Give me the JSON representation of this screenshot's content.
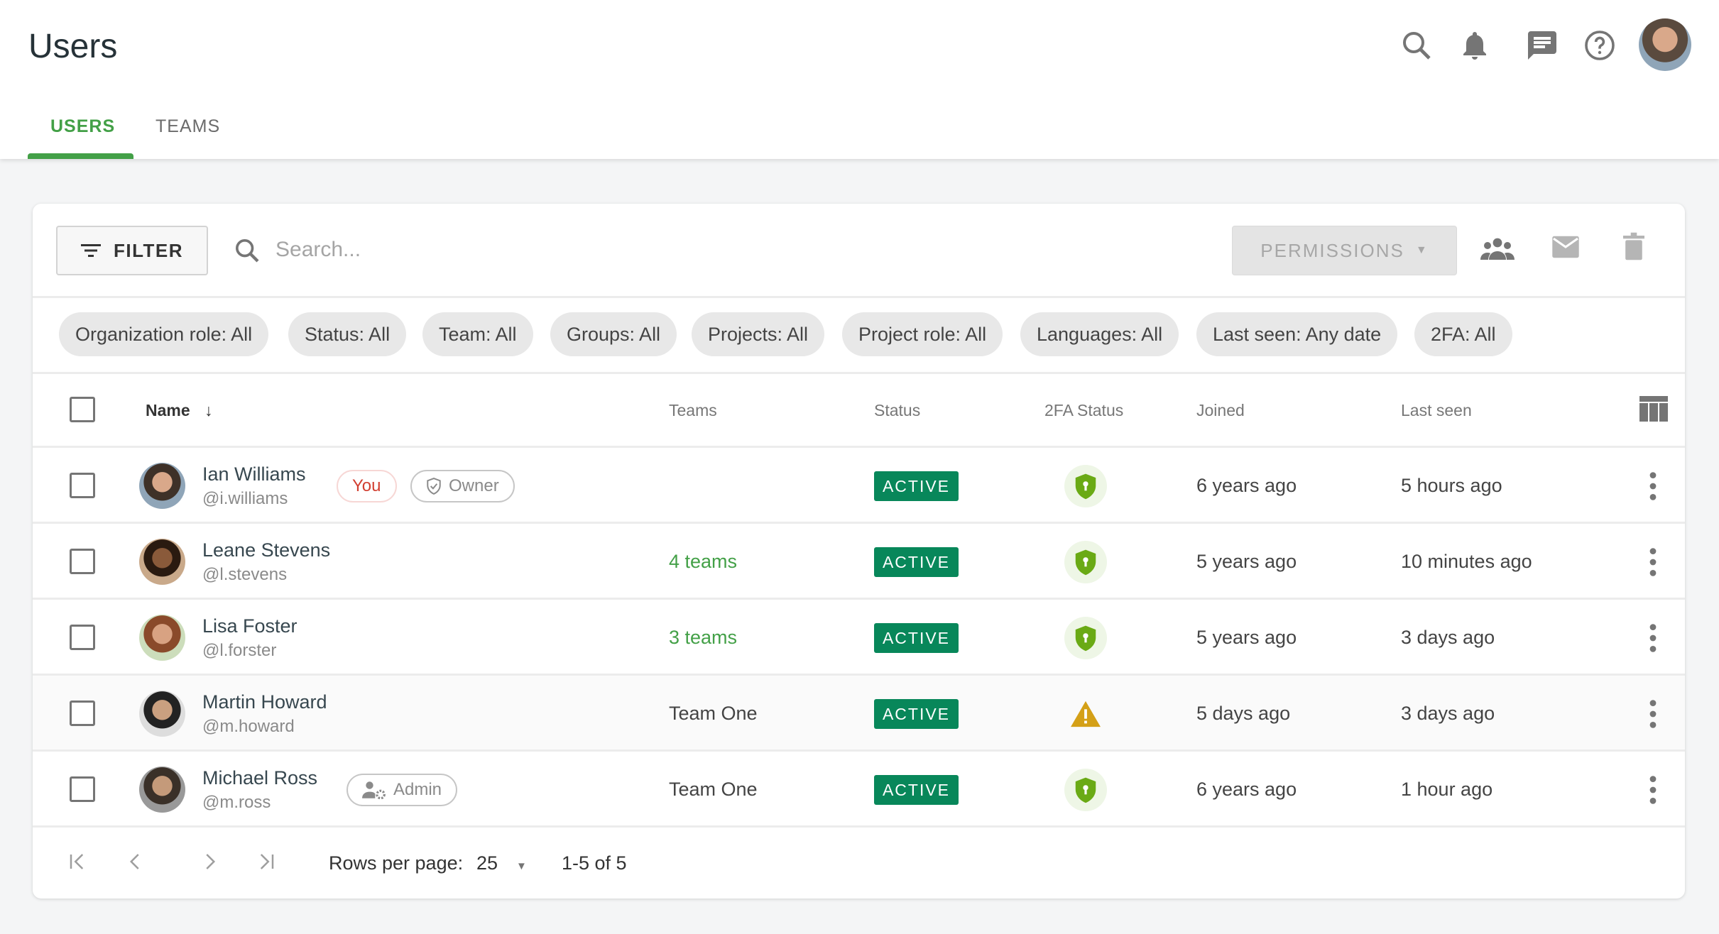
{
  "header": {
    "title": "Users",
    "icons": [
      "search-icon",
      "bell-icon",
      "chat-icon",
      "help-icon"
    ]
  },
  "tabs": [
    {
      "label": "USERS",
      "active": true
    },
    {
      "label": "TEAMS",
      "active": false
    }
  ],
  "toolbar": {
    "filter_label": "FILTER",
    "search_placeholder": "Search...",
    "permissions_label": "PERMISSIONS"
  },
  "chips": [
    "Organization role: All",
    "Status: All",
    "Team: All",
    "Groups: All",
    "Projects: All",
    "Project role: All",
    "Languages: All",
    "Last seen: Any date",
    "2FA: All"
  ],
  "columns": {
    "name": "Name",
    "teams": "Teams",
    "status": "Status",
    "twofa": "2FA Status",
    "joined": "Joined",
    "last_seen": "Last seen"
  },
  "rows": [
    {
      "name": "Ian Williams",
      "handle": "@i.williams",
      "you": "You",
      "role": "Owner",
      "teams": "",
      "status": "ACTIVE",
      "twofa": "enabled",
      "joined": "6 years ago",
      "last_seen": "5 hours ago"
    },
    {
      "name": "Leane Stevens",
      "handle": "@l.stevens",
      "teams": "4 teams",
      "status": "ACTIVE",
      "twofa": "enabled",
      "joined": "5 years ago",
      "last_seen": "10 minutes ago"
    },
    {
      "name": "Lisa Foster",
      "handle": "@l.forster",
      "teams": "3 teams",
      "status": "ACTIVE",
      "twofa": "enabled",
      "joined": "5 years ago",
      "last_seen": "3 days ago"
    },
    {
      "name": "Martin Howard",
      "handle": "@m.howard",
      "teams": "Team One",
      "status": "ACTIVE",
      "twofa": "warning",
      "joined": "5 days ago",
      "last_seen": "3 days ago"
    },
    {
      "name": "Michael Ross",
      "handle": "@m.ross",
      "role": "Admin",
      "teams": "Team One",
      "status": "ACTIVE",
      "twofa": "enabled",
      "joined": "6 years ago",
      "last_seen": "1 hour ago"
    }
  ],
  "pagination": {
    "rows_per_page_label": "Rows per page:",
    "rows_per_page": "25",
    "range": "1-5 of 5"
  },
  "colors": {
    "accent": "#43a047",
    "active_badge": "#08875a",
    "twofa_ok": "#6aaa15",
    "twofa_warn": "#d4a017",
    "you": "#d23f31"
  }
}
